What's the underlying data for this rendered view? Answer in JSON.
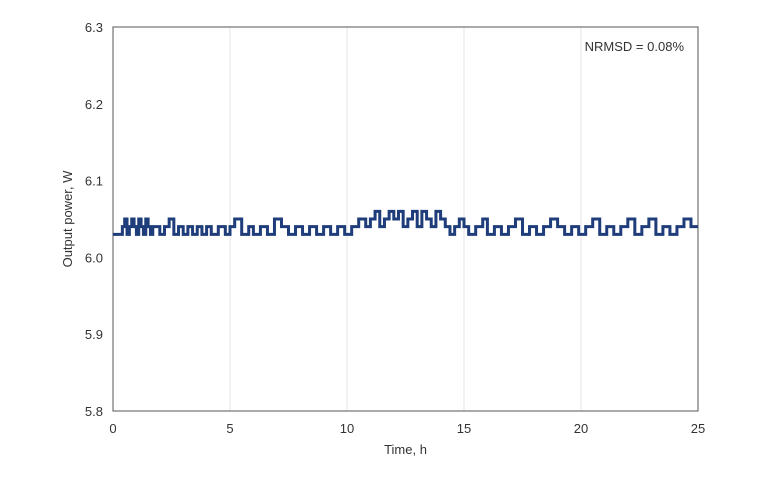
{
  "chart_data": {
    "type": "line",
    "title": "",
    "xlabel": "Time, h",
    "ylabel": "Output power, W",
    "xlim": [
      0,
      25
    ],
    "ylim": [
      5.8,
      6.3
    ],
    "x_ticks": [
      0,
      5,
      10,
      15,
      20,
      25
    ],
    "y_ticks": [
      5.8,
      5.9,
      6.0,
      6.1,
      6.2,
      6.3
    ],
    "x_tick_labels": [
      "0",
      "5",
      "10",
      "15",
      "20",
      "25"
    ],
    "y_tick_labels": [
      "5.8",
      "5.9",
      "6.0",
      "6.1",
      "6.2",
      "6.3"
    ],
    "grid": "vertical",
    "annotation": "NRMSD = 0.08%",
    "series_color": "#1f3d7a",
    "series": [
      {
        "x": [
          0,
          0.3,
          0.4,
          0.5,
          0.6,
          0.7,
          0.8,
          0.9,
          1.0,
          1.1,
          1.2,
          1.3,
          1.4,
          1.5,
          1.6,
          1.7,
          2.0,
          2.2,
          2.4,
          2.6,
          2.8,
          3.0,
          3.2,
          3.4,
          3.6,
          3.8,
          4.0,
          4.2,
          4.5,
          4.8,
          5.0,
          5.2,
          5.5,
          5.8,
          6.0,
          6.3,
          6.6,
          6.9,
          7.2,
          7.5,
          7.8,
          8.1,
          8.4,
          8.7,
          9.0,
          9.3,
          9.6,
          9.9,
          10.2,
          10.5,
          10.8,
          11.0,
          11.2,
          11.4,
          11.6,
          11.8,
          12.0,
          12.2,
          12.4,
          12.6,
          12.8,
          13.0,
          13.2,
          13.4,
          13.6,
          13.8,
          14.0,
          14.2,
          14.4,
          14.6,
          14.8,
          15.0,
          15.2,
          15.5,
          15.8,
          16.0,
          16.3,
          16.6,
          16.9,
          17.2,
          17.5,
          17.8,
          18.1,
          18.4,
          18.7,
          19.0,
          19.3,
          19.6,
          19.9,
          20.2,
          20.5,
          20.8,
          21.1,
          21.4,
          21.7,
          22.0,
          22.3,
          22.6,
          22.9,
          23.2,
          23.5,
          23.8,
          24.1,
          24.4,
          24.7,
          25.0
        ],
        "y": [
          6.03,
          6.03,
          6.04,
          6.05,
          6.03,
          6.04,
          6.05,
          6.04,
          6.03,
          6.05,
          6.04,
          6.03,
          6.05,
          6.04,
          6.03,
          6.04,
          6.03,
          6.04,
          6.05,
          6.03,
          6.04,
          6.03,
          6.04,
          6.03,
          6.04,
          6.03,
          6.04,
          6.03,
          6.04,
          6.03,
          6.04,
          6.05,
          6.03,
          6.04,
          6.03,
          6.04,
          6.03,
          6.05,
          6.04,
          6.03,
          6.04,
          6.03,
          6.04,
          6.03,
          6.04,
          6.03,
          6.04,
          6.03,
          6.04,
          6.05,
          6.04,
          6.05,
          6.06,
          6.04,
          6.05,
          6.06,
          6.05,
          6.06,
          6.04,
          6.05,
          6.06,
          6.04,
          6.06,
          6.05,
          6.04,
          6.06,
          6.05,
          6.04,
          6.03,
          6.04,
          6.05,
          6.04,
          6.03,
          6.04,
          6.05,
          6.03,
          6.04,
          6.03,
          6.04,
          6.05,
          6.03,
          6.04,
          6.03,
          6.04,
          6.05,
          6.04,
          6.03,
          6.04,
          6.03,
          6.04,
          6.05,
          6.03,
          6.04,
          6.03,
          6.04,
          6.05,
          6.03,
          6.04,
          6.05,
          6.03,
          6.04,
          6.03,
          6.04,
          6.05,
          6.04,
          6.04
        ]
      }
    ]
  }
}
